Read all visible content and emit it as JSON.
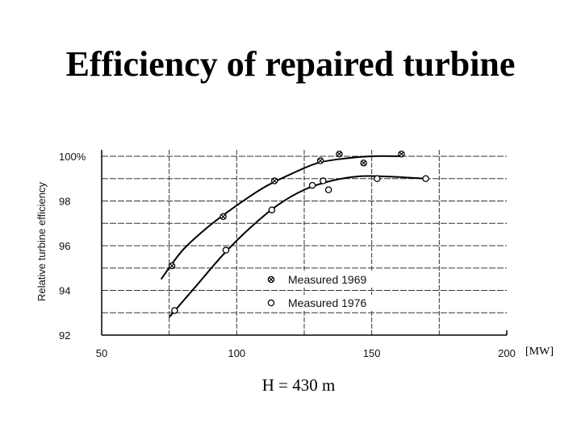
{
  "slide": {
    "title": "Efficiency of repaired turbine",
    "unit": "[MW]",
    "head": "H = 430 m"
  },
  "chart_data": {
    "type": "scatter",
    "title": "",
    "xlabel": "",
    "ylabel": "Relative turbine efficiency",
    "xlim": [
      50,
      200
    ],
    "ylim": [
      92,
      100
    ],
    "x_ticks": [
      "50",
      "100",
      "150",
      "200"
    ],
    "y_ticks": [
      "92",
      "94",
      "96",
      "98",
      "100%"
    ],
    "grid": true,
    "legend_position": "lower-right",
    "series": [
      {
        "name": "Measured 1969",
        "marker": "circle-cross",
        "points": [
          [
            76,
            95.1
          ],
          [
            95,
            97.3
          ],
          [
            114,
            98.9
          ],
          [
            131,
            99.8
          ],
          [
            138,
            100.1
          ],
          [
            147,
            99.7
          ],
          [
            161,
            100.1
          ]
        ],
        "curve": [
          [
            72,
            94.5
          ],
          [
            80,
            95.8
          ],
          [
            90,
            96.9
          ],
          [
            100,
            97.8
          ],
          [
            110,
            98.6
          ],
          [
            120,
            99.2
          ],
          [
            130,
            99.7
          ],
          [
            140,
            99.9
          ],
          [
            150,
            100.0
          ],
          [
            161,
            100.0
          ]
        ]
      },
      {
        "name": "Measured 1976",
        "marker": "open-circle",
        "points": [
          [
            77,
            93.1
          ],
          [
            96,
            95.8
          ],
          [
            113,
            97.6
          ],
          [
            128,
            98.7
          ],
          [
            132,
            98.9
          ],
          [
            134,
            98.5
          ],
          [
            152,
            99.0
          ],
          [
            170,
            99.0
          ]
        ],
        "curve": [
          [
            75,
            92.8
          ],
          [
            85,
            94.2
          ],
          [
            95,
            95.6
          ],
          [
            105,
            96.8
          ],
          [
            115,
            97.8
          ],
          [
            125,
            98.5
          ],
          [
            135,
            98.9
          ],
          [
            145,
            99.1
          ],
          [
            155,
            99.1
          ],
          [
            170,
            99.0
          ]
        ]
      }
    ]
  }
}
